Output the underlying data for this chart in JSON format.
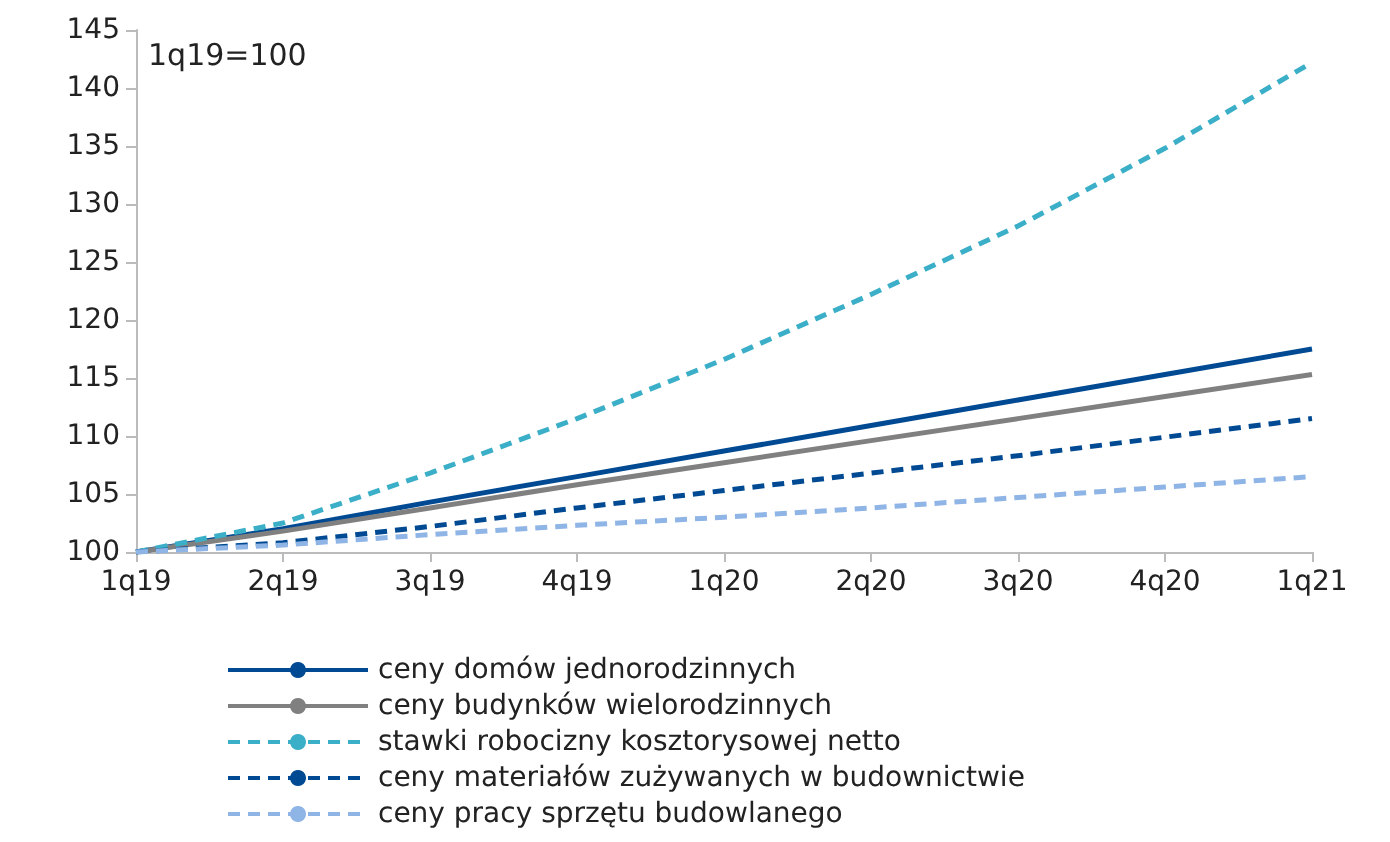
{
  "chart_data": {
    "type": "line",
    "categories": [
      "1q19",
      "2q19",
      "3q19",
      "4q19",
      "1q20",
      "2q20",
      "3q20",
      "4q20",
      "1q21"
    ],
    "series": [
      {
        "name": "ceny domów jednorodzinnych",
        "color": "#004a93",
        "line_style": "solid",
        "values": [
          100,
          102,
          104.3,
          106.5,
          108.7,
          110.9,
          113.1,
          115.3,
          117.5
        ]
      },
      {
        "name": "ceny budynków wielorodzinnych",
        "color": "#808080",
        "line_style": "solid",
        "values": [
          100,
          101.8,
          103.8,
          105.8,
          107.7,
          109.6,
          111.5,
          113.4,
          115.3
        ]
      },
      {
        "name": "stawki robocizny kosztorysowej netto",
        "color": "#3cafc8",
        "line_style": "dashed",
        "values": [
          100,
          102.5,
          106.8,
          111.5,
          116.6,
          122.2,
          128.1,
          134.8,
          142.2
        ]
      },
      {
        "name": "ceny materiałów zużywanych w budownictwie",
        "color": "#004a93",
        "line_style": "dashed",
        "values": [
          100,
          100.8,
          102.2,
          103.8,
          105.3,
          106.8,
          108.3,
          109.9,
          111.5
        ]
      },
      {
        "name": "ceny pracy sprzętu budowlanego",
        "color": "#8fb4e6",
        "line_style": "dashed",
        "values": [
          100,
          100.6,
          101.5,
          102.3,
          103.0,
          103.8,
          104.7,
          105.6,
          106.5
        ]
      }
    ],
    "ylim": [
      100,
      145
    ],
    "yticks": [
      100,
      105,
      110,
      115,
      120,
      125,
      130,
      135,
      140,
      145
    ],
    "grid": false,
    "legend": "bottom",
    "marker": "none",
    "annotations": [
      "1q19=100"
    ]
  }
}
